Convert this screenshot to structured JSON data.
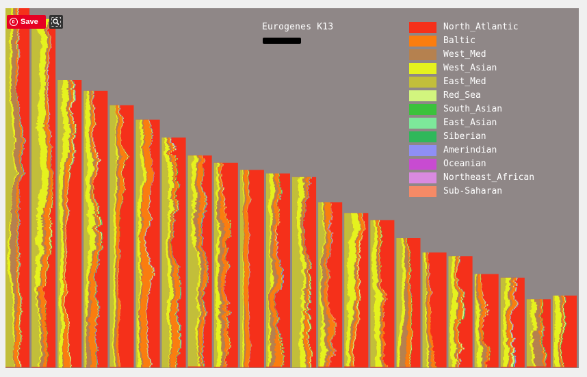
{
  "chart_data": {
    "type": "stacked-area-columns",
    "title": "Eurogenes K13",
    "background": "#8f8787",
    "legend_position": "top-right",
    "components": [
      {
        "name": "North_Atlantic",
        "color": "#f5301a"
      },
      {
        "name": "Baltic",
        "color": "#fa7d0f"
      },
      {
        "name": "West_Med",
        "color": "#b5814f"
      },
      {
        "name": "West_Asian",
        "color": "#e5f21e"
      },
      {
        "name": "East_Med",
        "color": "#c2be3a"
      },
      {
        "name": "Red_Sea",
        "color": "#d2f57e"
      },
      {
        "name": "South_Asian",
        "color": "#3bc23b"
      },
      {
        "name": "East_Asian",
        "color": "#7de89a"
      },
      {
        "name": "Siberian",
        "color": "#2fb85a"
      },
      {
        "name": "Amerindian",
        "color": "#8f8ff5"
      },
      {
        "name": "Oceanian",
        "color": "#c84bd1"
      },
      {
        "name": "Northeast_African",
        "color": "#d98ae0"
      },
      {
        "name": "Sub-Saharan",
        "color": "#f58a66"
      }
    ],
    "columns": [
      {
        "height": 1.0,
        "mix": [
          0.46,
          0.1,
          0.12,
          0.06,
          0.2,
          0.02,
          0.01,
          0.01,
          0.0,
          0.01,
          0.0,
          0.0,
          0.01
        ]
      },
      {
        "height": 0.97,
        "mix": [
          0.3,
          0.08,
          0.1,
          0.18,
          0.3,
          0.02,
          0.01,
          0.0,
          0.0,
          0.01,
          0.0,
          0.0,
          0.0
        ]
      },
      {
        "height": 0.8,
        "mix": [
          0.48,
          0.14,
          0.06,
          0.1,
          0.18,
          0.02,
          0.01,
          0.0,
          0.0,
          0.01,
          0.0,
          0.0,
          0.0
        ]
      },
      {
        "height": 0.77,
        "mix": [
          0.46,
          0.12,
          0.12,
          0.1,
          0.16,
          0.02,
          0.01,
          0.0,
          0.0,
          0.01,
          0.0,
          0.0,
          0.0
        ]
      },
      {
        "height": 0.73,
        "mix": [
          0.5,
          0.12,
          0.08,
          0.08,
          0.18,
          0.02,
          0.01,
          0.0,
          0.0,
          0.01,
          0.0,
          0.0,
          0.0
        ]
      },
      {
        "height": 0.69,
        "mix": [
          0.38,
          0.16,
          0.08,
          0.14,
          0.2,
          0.02,
          0.01,
          0.0,
          0.0,
          0.01,
          0.0,
          0.0,
          0.0
        ]
      },
      {
        "height": 0.64,
        "mix": [
          0.54,
          0.12,
          0.08,
          0.08,
          0.14,
          0.02,
          0.01,
          0.0,
          0.0,
          0.01,
          0.0,
          0.0,
          0.0
        ]
      },
      {
        "height": 0.59,
        "mix": [
          0.4,
          0.14,
          0.06,
          0.16,
          0.2,
          0.02,
          0.01,
          0.0,
          0.0,
          0.01,
          0.0,
          0.0,
          0.0
        ]
      },
      {
        "height": 0.57,
        "mix": [
          0.52,
          0.14,
          0.06,
          0.1,
          0.14,
          0.02,
          0.01,
          0.0,
          0.0,
          0.01,
          0.0,
          0.0,
          0.0
        ]
      },
      {
        "height": 0.55,
        "mix": [
          0.56,
          0.14,
          0.08,
          0.06,
          0.12,
          0.02,
          0.01,
          0.0,
          0.0,
          0.01,
          0.0,
          0.0,
          0.0
        ]
      },
      {
        "height": 0.54,
        "mix": [
          0.5,
          0.16,
          0.06,
          0.1,
          0.14,
          0.02,
          0.01,
          0.0,
          0.0,
          0.01,
          0.0,
          0.0,
          0.0
        ]
      },
      {
        "height": 0.53,
        "mix": [
          0.44,
          0.12,
          0.06,
          0.18,
          0.16,
          0.02,
          0.01,
          0.0,
          0.0,
          0.01,
          0.0,
          0.0,
          0.0
        ]
      },
      {
        "height": 0.46,
        "mix": [
          0.46,
          0.18,
          0.06,
          0.1,
          0.16,
          0.01,
          0.01,
          0.0,
          0.0,
          0.01,
          0.0,
          0.0,
          0.01
        ]
      },
      {
        "height": 0.43,
        "mix": [
          0.34,
          0.12,
          0.1,
          0.16,
          0.24,
          0.02,
          0.01,
          0.0,
          0.0,
          0.01,
          0.0,
          0.0,
          0.0
        ]
      },
      {
        "height": 0.41,
        "mix": [
          0.48,
          0.1,
          0.08,
          0.12,
          0.18,
          0.02,
          0.01,
          0.0,
          0.0,
          0.01,
          0.0,
          0.0,
          0.0
        ]
      },
      {
        "height": 0.36,
        "mix": [
          0.36,
          0.14,
          0.2,
          0.1,
          0.16,
          0.02,
          0.01,
          0.0,
          0.0,
          0.01,
          0.0,
          0.0,
          0.0
        ]
      },
      {
        "height": 0.32,
        "mix": [
          0.58,
          0.12,
          0.06,
          0.08,
          0.12,
          0.02,
          0.01,
          0.0,
          0.0,
          0.01,
          0.0,
          0.0,
          0.0
        ]
      },
      {
        "height": 0.31,
        "mix": [
          0.6,
          0.1,
          0.06,
          0.08,
          0.12,
          0.02,
          0.01,
          0.0,
          0.0,
          0.01,
          0.0,
          0.0,
          0.0
        ]
      },
      {
        "height": 0.26,
        "mix": [
          0.64,
          0.08,
          0.06,
          0.08,
          0.1,
          0.02,
          0.01,
          0.0,
          0.0,
          0.01,
          0.0,
          0.0,
          0.0
        ]
      },
      {
        "height": 0.25,
        "mix": [
          0.56,
          0.1,
          0.06,
          0.1,
          0.14,
          0.02,
          0.01,
          0.0,
          0.0,
          0.01,
          0.0,
          0.0,
          0.0
        ]
      },
      {
        "height": 0.19,
        "mix": [
          0.26,
          0.1,
          0.24,
          0.14,
          0.22,
          0.02,
          0.01,
          0.0,
          0.0,
          0.01,
          0.0,
          0.0,
          0.0
        ]
      },
      {
        "height": 0.2,
        "mix": [
          0.44,
          0.1,
          0.1,
          0.12,
          0.2,
          0.02,
          0.01,
          0.0,
          0.0,
          0.01,
          0.0,
          0.0,
          0.0
        ]
      }
    ]
  },
  "toolbar": {
    "save_label": "Save"
  },
  "icons": {
    "pinterest": "pinterest-icon",
    "zoom": "magnifier-icon"
  }
}
